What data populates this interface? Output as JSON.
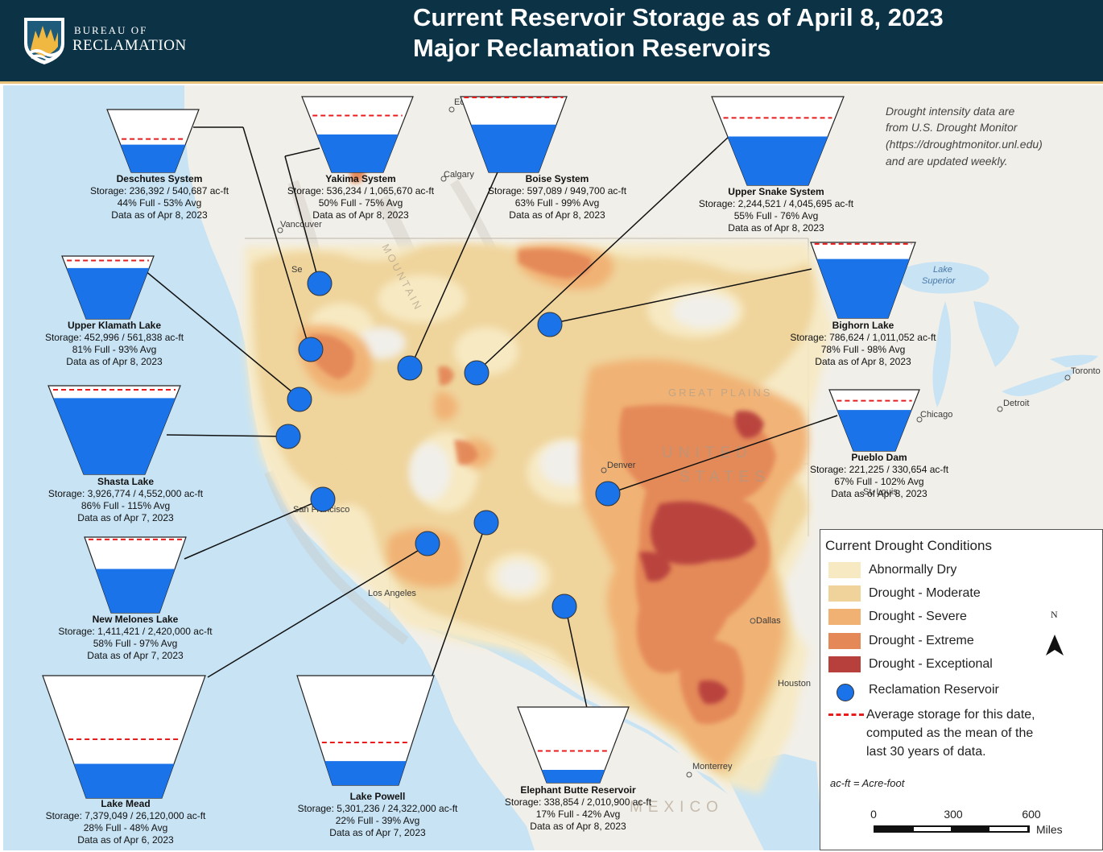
{
  "header": {
    "agency_line1": "BUREAU OF",
    "agency_line2": "RECLAMATION",
    "title_line1": "Current Reservoir Storage as of April 8, 2023",
    "title_line2": "Major Reclamation Reservoirs"
  },
  "note": {
    "line1": "Drought intensity data are",
    "line2": "from U.S. Drought Monitor",
    "line3": "(https://droughtmonitor.unl.edu)",
    "line4": "and are updated weekly."
  },
  "places": {
    "edmonton": "Edmonton",
    "calgary": "Calgary",
    "vancouver": "Vancouver",
    "seattle": "Se",
    "lake_superior_1": "Lake",
    "lake_superior_2": "Superior",
    "toronto": "Toronto",
    "detroit": "Detroit",
    "chicago": "Chicago",
    "st_louis": "St. Louis",
    "denver": "Denver",
    "dallas": "Dallas",
    "houston": "Houston",
    "monterrey": "Monterrey",
    "san_francisco": "San Francisco",
    "los_angeles": "Los Angeles",
    "great_plains": "GREAT PLAINS",
    "united": "UNITED",
    "states": "STATES",
    "mexico": "MEXICO",
    "mountain": "MOUNTAIN"
  },
  "reservoirs": [
    {
      "name": "Deschutes System",
      "storage": "Storage: 236,392 / 540,687 ac-ft",
      "pct": "44% Full - 53% Avg",
      "date": "Data as of Apr 8, 2023",
      "full_fraction": 0.44,
      "avg_fraction": 0.53
    },
    {
      "name": "Yakima System",
      "storage": "Storage: 536,234 / 1,065,670 ac-ft",
      "pct": "50% Full - 75% Avg",
      "date": "Data as of Apr 8, 2023",
      "full_fraction": 0.5,
      "avg_fraction": 0.75
    },
    {
      "name": "Boise System",
      "storage": "Storage: 597,089 / 949,700 ac-ft",
      "pct": "63% Full - 99% Avg",
      "date": "Data as of Apr 8, 2023",
      "full_fraction": 0.63,
      "avg_fraction": 0.99
    },
    {
      "name": "Upper Snake System",
      "storage": "Storage: 2,244,521 / 4,045,695 ac-ft",
      "pct": "55% Full - 76% Avg",
      "date": "Data as of Apr 8, 2023",
      "full_fraction": 0.55,
      "avg_fraction": 0.76
    },
    {
      "name": "Upper Klamath Lake",
      "storage": "Storage: 452,996 / 561,838 ac-ft",
      "pct": "81% Full - 93% Avg",
      "date": "Data as of Apr 8, 2023",
      "full_fraction": 0.81,
      "avg_fraction": 0.93
    },
    {
      "name": "Bighorn Lake",
      "storage": "Storage: 786,624 / 1,011,052 ac-ft",
      "pct": "78% Full - 98% Avg",
      "date": "Data as of Apr 8, 2023",
      "full_fraction": 0.78,
      "avg_fraction": 0.98
    },
    {
      "name": "Shasta Lake",
      "storage": "Storage: 3,926,774 / 4,552,000 ac-ft",
      "pct": "86% Full - 115% Avg",
      "date": "Data as of Apr 7, 2023",
      "full_fraction": 0.86,
      "avg_fraction": 1.15
    },
    {
      "name": "Pueblo Dam",
      "storage": "Storage: 221,225 / 330,654 ac-ft",
      "pct": "67% Full - 102% Avg",
      "date": "Data as of Apr 8, 2023",
      "full_fraction": 0.67,
      "avg_fraction": 1.02
    },
    {
      "name": "New Melones Lake",
      "storage": "Storage: 1,411,421 / 2,420,000 ac-ft",
      "pct": "58% Full - 97% Avg",
      "date": "Data as of Apr 7, 2023",
      "full_fraction": 0.58,
      "avg_fraction": 0.97
    },
    {
      "name": "Lake Mead",
      "storage": "Storage: 7,379,049 / 26,120,000 ac-ft",
      "pct": "28% Full - 48% Avg",
      "date": "Data as of Apr 6, 2023",
      "full_fraction": 0.28,
      "avg_fraction": 0.48
    },
    {
      "name": "Lake Powell",
      "storage": "Storage: 5,301,236 / 24,322,000 ac-ft",
      "pct": "22% Full - 39% Avg",
      "date": "Data as of Apr 7, 2023",
      "full_fraction": 0.22,
      "avg_fraction": 0.39
    },
    {
      "name": "Elephant Butte Reservoir",
      "storage": "Storage: 338,854 / 2,010,900 ac-ft",
      "pct": "17% Full - 42% Avg",
      "date": "Data as of Apr 8, 2023",
      "full_fraction": 0.17,
      "avg_fraction": 0.42
    }
  ],
  "legend": {
    "title": "Current Drought Conditions",
    "categories": [
      {
        "label": "Abnormally Dry",
        "color": "#f7e9c2"
      },
      {
        "label": "Drought - Moderate",
        "color": "#efd39a"
      },
      {
        "label": "Drought - Severe",
        "color": "#f1b173"
      },
      {
        "label": "Drought - Extreme",
        "color": "#e48858"
      },
      {
        "label": "Drought - Exceptional",
        "color": "#b8403c"
      }
    ],
    "reservoir_label": "Reclamation Reservoir",
    "avg_line1": "Average storage for this date,",
    "avg_line2": "computed as the mean of the",
    "avg_line3": "last 30 years of data.",
    "acft_note": "ac-ft = Acre-foot",
    "north": "N",
    "scale": {
      "zero": "0",
      "mid": "300",
      "max": "600",
      "unit": "Miles"
    }
  },
  "colors": {
    "header": "#0c3246",
    "water": "#1a73e8",
    "average_line": "#e81c1c",
    "ocean": "#c7e3f4"
  }
}
